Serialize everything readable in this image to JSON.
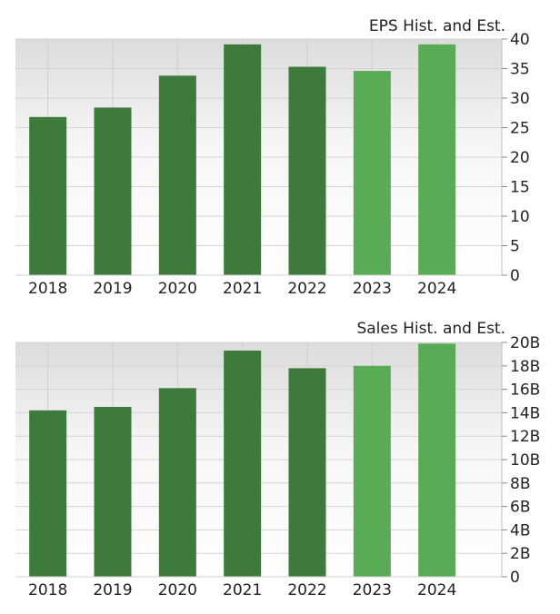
{
  "chart_data": [
    {
      "type": "bar",
      "title": "EPS Hist. and Est.",
      "categories": [
        "2018",
        "2019",
        "2020",
        "2021",
        "2022",
        "2023",
        "2024"
      ],
      "values": [
        26.8,
        28.4,
        33.8,
        39.1,
        35.3,
        34.6,
        39.1
      ],
      "estimated": [
        false,
        false,
        false,
        false,
        false,
        true,
        true
      ],
      "ylim": [
        0,
        40
      ],
      "yticks": [
        0,
        5,
        10,
        15,
        20,
        25,
        30,
        35,
        40
      ],
      "ytick_labels": [
        "0",
        "5",
        "10",
        "15",
        "20",
        "25",
        "30",
        "35",
        "40"
      ],
      "grid": true,
      "colors": {
        "historical": "#3e7a3b",
        "estimate": "#5aab56"
      }
    },
    {
      "type": "bar",
      "title": "Sales Hist. and Est.",
      "categories": [
        "2018",
        "2019",
        "2020",
        "2021",
        "2022",
        "2023",
        "2024"
      ],
      "values": [
        14.2,
        14.5,
        16.1,
        19.3,
        17.8,
        18.0,
        19.9
      ],
      "estimated": [
        false,
        false,
        false,
        false,
        false,
        true,
        true
      ],
      "ylim": [
        0,
        20
      ],
      "yticks": [
        0,
        2,
        4,
        6,
        8,
        10,
        12,
        14,
        16,
        18,
        20
      ],
      "ytick_labels": [
        "0",
        "2B",
        "4B",
        "6B",
        "8B",
        "10B",
        "12B",
        "14B",
        "16B",
        "18B",
        "20B"
      ],
      "grid": true,
      "colors": {
        "historical": "#3e7a3b",
        "estimate": "#5aab56"
      }
    }
  ]
}
